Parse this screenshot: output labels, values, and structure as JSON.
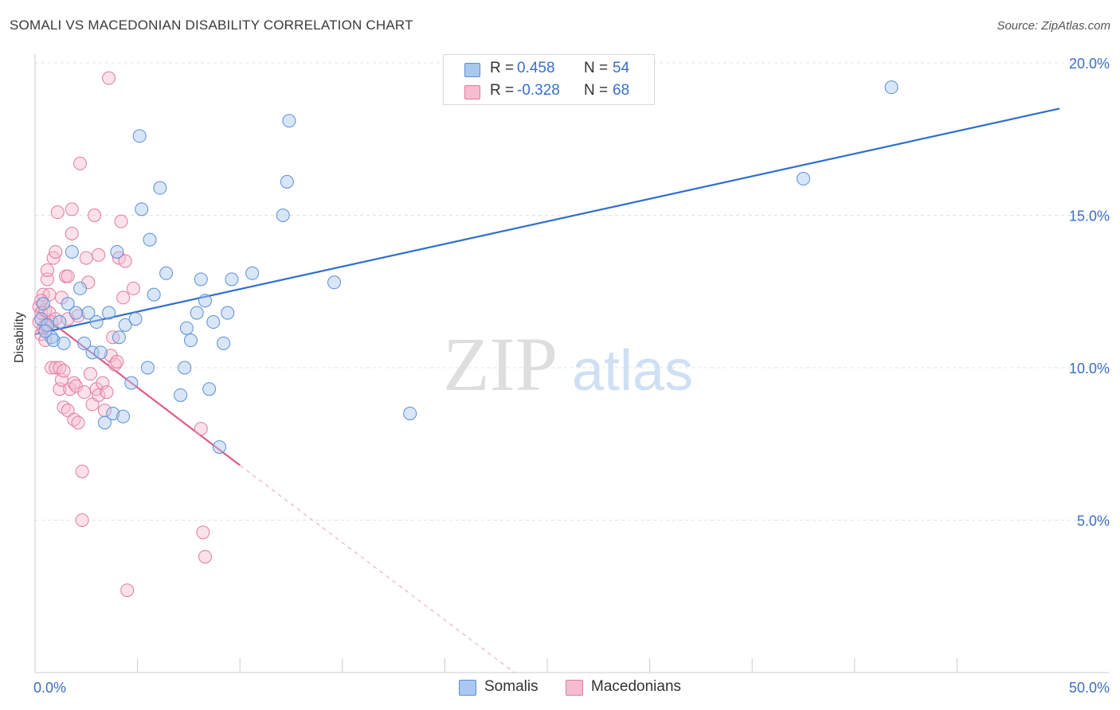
{
  "header": {
    "title": "SOMALI VS MACEDONIAN DISABILITY CORRELATION CHART",
    "source": "Source: ZipAtlas.com"
  },
  "legend": {
    "rows": [
      {
        "r_label": "R =",
        "r_value": "0.458",
        "n_label": "N =",
        "n_value": "54"
      },
      {
        "r_label": "R =",
        "r_value": "-0.328",
        "n_label": "N =",
        "n_value": "68"
      }
    ],
    "bottom": [
      "Somalis",
      "Macedonians"
    ]
  },
  "watermark": {
    "zip": "ZIP",
    "atlas": "atlas"
  },
  "colors": {
    "somali_fill": "#a9c8f0",
    "somali_stroke": "#5b8fd6",
    "somali_line": "#2f6fcc",
    "macedonian_fill": "#f6bcd0",
    "macedonian_stroke": "#e07ba0",
    "macedonian_line": "#e05a8a",
    "tick_text": "#3a6fc4",
    "grid": "#e3e3e3"
  },
  "chart_data": {
    "type": "scatter",
    "title": "SOMALI VS MACEDONIAN DISABILITY CORRELATION CHART",
    "xlabel": "",
    "ylabel": "Disability",
    "xlim": [
      0,
      50
    ],
    "ylim": [
      0,
      20
    ],
    "x_tick_labels": [
      "0.0%",
      "50.0%"
    ],
    "y_ticks": [
      5,
      10,
      15,
      20
    ],
    "y_tick_labels": [
      "5.0%",
      "10.0%",
      "15.0%",
      "20.0%"
    ],
    "grid": true,
    "series": [
      {
        "name": "Somalis",
        "r": 0.458,
        "n": 54,
        "trend": {
          "x0": 0,
          "y0": 11.1,
          "x1": 50,
          "y1": 18.5
        },
        "points": [
          [
            0.3,
            11.6
          ],
          [
            0.4,
            12.1
          ],
          [
            0.6,
            11.4
          ],
          [
            0.8,
            11.0
          ],
          [
            0.9,
            10.9
          ],
          [
            1.2,
            11.5
          ],
          [
            1.4,
            10.8
          ],
          [
            1.6,
            12.1
          ],
          [
            1.8,
            13.8
          ],
          [
            2.0,
            11.8
          ],
          [
            2.2,
            12.6
          ],
          [
            2.4,
            10.8
          ],
          [
            2.6,
            11.8
          ],
          [
            2.8,
            10.5
          ],
          [
            3.0,
            11.5
          ],
          [
            3.2,
            10.5
          ],
          [
            3.4,
            8.2
          ],
          [
            3.6,
            11.8
          ],
          [
            3.8,
            8.5
          ],
          [
            4.0,
            13.8
          ],
          [
            4.1,
            11.0
          ],
          [
            4.3,
            8.4
          ],
          [
            4.4,
            11.4
          ],
          [
            4.7,
            9.5
          ],
          [
            4.9,
            11.6
          ],
          [
            5.1,
            17.6
          ],
          [
            5.2,
            15.2
          ],
          [
            5.5,
            10.0
          ],
          [
            5.6,
            14.2
          ],
          [
            5.8,
            12.4
          ],
          [
            6.1,
            15.9
          ],
          [
            6.4,
            13.1
          ],
          [
            7.1,
            9.1
          ],
          [
            7.3,
            10.0
          ],
          [
            7.4,
            11.3
          ],
          [
            7.6,
            10.9
          ],
          [
            7.9,
            11.8
          ],
          [
            8.1,
            12.9
          ],
          [
            8.3,
            12.2
          ],
          [
            8.5,
            9.3
          ],
          [
            8.7,
            11.5
          ],
          [
            9.0,
            7.4
          ],
          [
            9.2,
            10.8
          ],
          [
            9.4,
            11.8
          ],
          [
            9.6,
            12.9
          ],
          [
            10.6,
            13.1
          ],
          [
            12.1,
            15.0
          ],
          [
            12.3,
            16.1
          ],
          [
            12.4,
            18.1
          ],
          [
            14.6,
            12.8
          ],
          [
            18.3,
            8.5
          ],
          [
            37.5,
            16.2
          ],
          [
            41.8,
            19.2
          ],
          [
            0.5,
            11.2
          ]
        ]
      },
      {
        "name": "Macedonians",
        "r": -0.328,
        "n": 68,
        "trend_solid": {
          "x0": 0,
          "y0": 11.9,
          "x1": 10,
          "y1": 6.8
        },
        "trend_dashed": {
          "x0": 10,
          "y0": 6.8,
          "x1": 23.4,
          "y1": 0
        },
        "points": [
          [
            0.2,
            12.0
          ],
          [
            0.2,
            11.5
          ],
          [
            0.3,
            11.1
          ],
          [
            0.3,
            11.8
          ],
          [
            0.4,
            12.4
          ],
          [
            0.4,
            11.3
          ],
          [
            0.5,
            11.9
          ],
          [
            0.5,
            11.4
          ],
          [
            0.6,
            12.9
          ],
          [
            0.6,
            13.2
          ],
          [
            0.7,
            12.4
          ],
          [
            0.7,
            11.8
          ],
          [
            0.8,
            10.0
          ],
          [
            0.8,
            11.5
          ],
          [
            0.9,
            13.6
          ],
          [
            1.0,
            13.8
          ],
          [
            1.0,
            10.0
          ],
          [
            1.0,
            11.6
          ],
          [
            1.1,
            15.1
          ],
          [
            1.2,
            9.3
          ],
          [
            1.2,
            10.0
          ],
          [
            1.3,
            9.6
          ],
          [
            1.3,
            12.3
          ],
          [
            1.4,
            9.9
          ],
          [
            1.4,
            8.7
          ],
          [
            1.5,
            13.0
          ],
          [
            1.6,
            13.0
          ],
          [
            1.6,
            8.6
          ],
          [
            1.6,
            11.6
          ],
          [
            1.7,
            9.3
          ],
          [
            1.8,
            15.2
          ],
          [
            1.8,
            14.4
          ],
          [
            1.9,
            8.3
          ],
          [
            1.9,
            9.5
          ],
          [
            2.0,
            9.4
          ],
          [
            2.1,
            8.2
          ],
          [
            2.1,
            11.7
          ],
          [
            2.2,
            16.7
          ],
          [
            2.3,
            6.6
          ],
          [
            2.3,
            5.0
          ],
          [
            2.4,
            9.2
          ],
          [
            2.5,
            13.6
          ],
          [
            2.6,
            12.8
          ],
          [
            2.7,
            9.8
          ],
          [
            2.8,
            8.8
          ],
          [
            2.9,
            15.0
          ],
          [
            3.0,
            9.3
          ],
          [
            3.1,
            13.7
          ],
          [
            3.1,
            9.1
          ],
          [
            3.3,
            9.5
          ],
          [
            3.4,
            8.6
          ],
          [
            3.5,
            9.2
          ],
          [
            3.6,
            19.5
          ],
          [
            3.7,
            10.4
          ],
          [
            3.8,
            11.0
          ],
          [
            3.9,
            10.1
          ],
          [
            4.0,
            10.2
          ],
          [
            4.1,
            13.6
          ],
          [
            4.2,
            14.8
          ],
          [
            4.3,
            12.3
          ],
          [
            4.4,
            13.5
          ],
          [
            4.5,
            2.7
          ],
          [
            4.8,
            12.6
          ],
          [
            8.1,
            8.0
          ],
          [
            8.2,
            4.6
          ],
          [
            8.3,
            3.8
          ],
          [
            0.3,
            12.2
          ],
          [
            0.5,
            10.9
          ]
        ]
      }
    ]
  }
}
